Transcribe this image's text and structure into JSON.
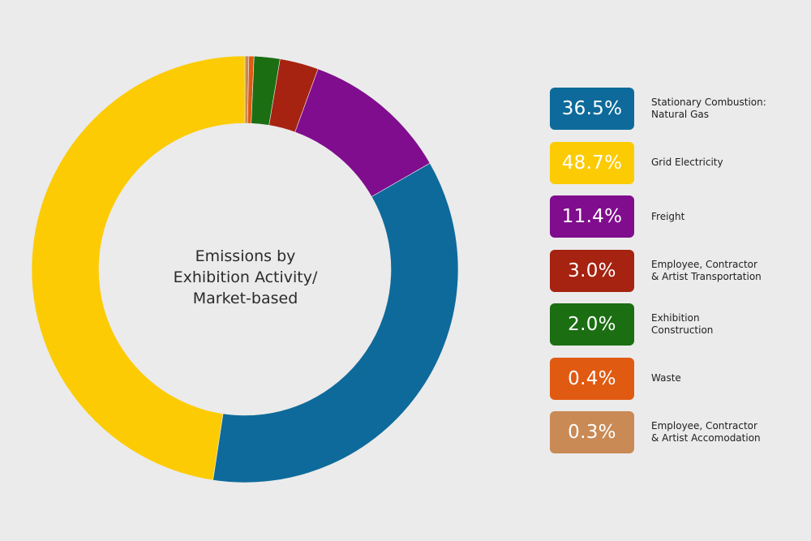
{
  "chart_data": {
    "type": "pie",
    "title": "Emissions by Exhibition Activity/ Market-based",
    "title_lines": [
      "Emissions by",
      "Exhibition Activity/",
      "Market-based"
    ],
    "unit": "%",
    "donut": true,
    "legend_position": "right",
    "start_angle": "top",
    "slices": [
      {
        "name_lines": [
          "Employee, Contractor",
          "& Artist Accomodation"
        ],
        "value": 0.3,
        "label": "0.3%",
        "color": "#c98a56"
      },
      {
        "name_lines": [
          "Waste"
        ],
        "value": 0.4,
        "label": "0.4%",
        "color": "#e05a12"
      },
      {
        "name_lines": [
          "Exhibition",
          "Construction"
        ],
        "value": 2.0,
        "label": "2.0%",
        "color": "#1b6e12"
      },
      {
        "name_lines": [
          "Employee, Contractor",
          "& Artist Transportation"
        ],
        "value": 3.0,
        "label": "3.0%",
        "color": "#a52310"
      },
      {
        "name_lines": [
          "Freight"
        ],
        "value": 11.4,
        "label": "11.4%",
        "color": "#800d8d"
      },
      {
        "name_lines": [
          "Stationary Combustion:",
          "Natural Gas"
        ],
        "value": 36.5,
        "label": "36.5%",
        "color": "#0e6a9b"
      },
      {
        "name_lines": [
          "Grid Electricity"
        ],
        "value": 48.7,
        "label": "48.7%",
        "color": "#fccb04"
      }
    ],
    "legend_order": [
      5,
      6,
      4,
      3,
      2,
      1,
      0
    ]
  }
}
